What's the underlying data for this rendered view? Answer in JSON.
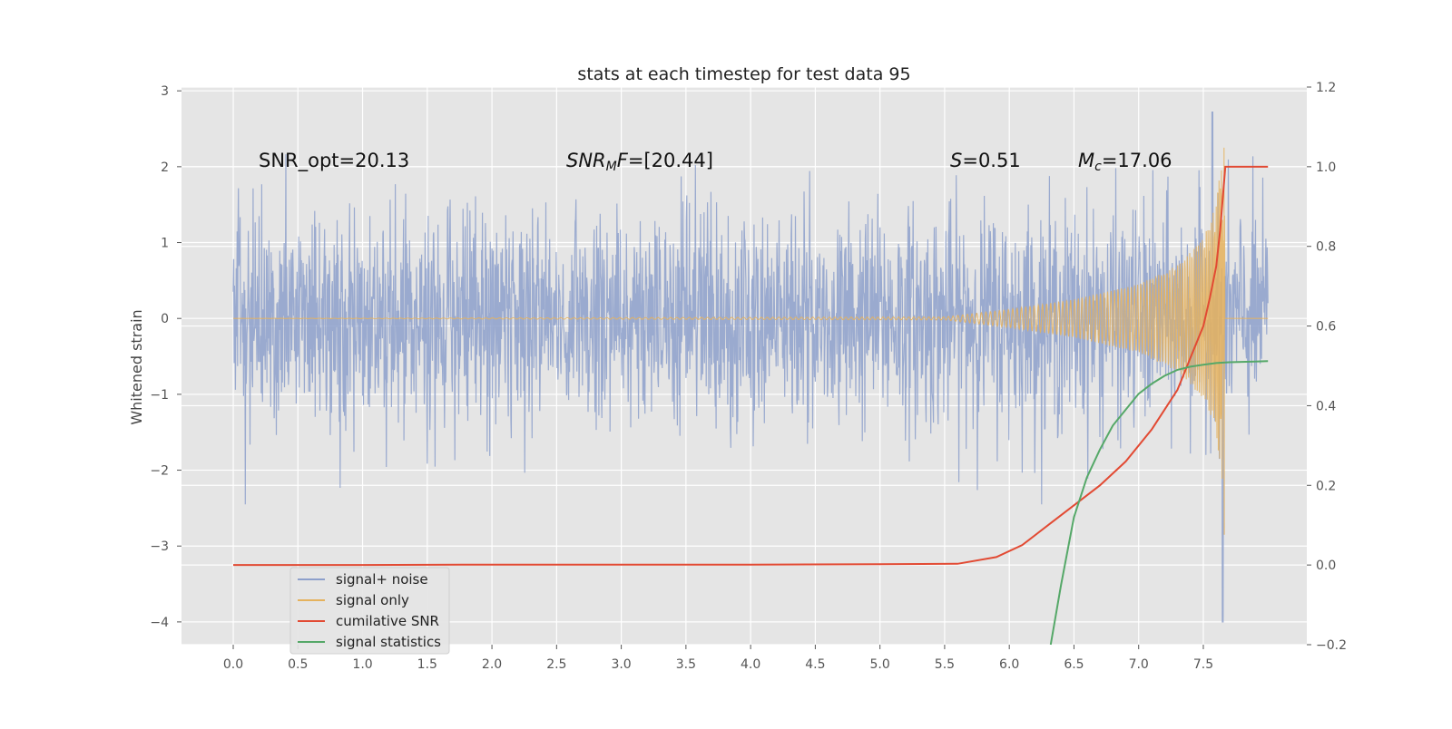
{
  "chart_data": {
    "type": "line",
    "title": "stats at each timestep for test data 95",
    "ylabel": "Whitened strain",
    "xlabel": "",
    "xlim": [
      -0.4,
      8.3
    ],
    "ylim": [
      -4.3,
      3.05
    ],
    "y2lim": [
      -0.2,
      1.2
    ],
    "x_ticks": [
      0.0,
      0.5,
      1.0,
      1.5,
      2.0,
      2.5,
      3.0,
      3.5,
      4.0,
      4.5,
      5.0,
      5.5,
      6.0,
      6.5,
      7.0,
      7.5
    ],
    "x_tick_labels": [
      "0.0",
      "0.5",
      "1.0",
      "1.5",
      "2.0",
      "2.5",
      "3.0",
      "3.5",
      "4.0",
      "4.5",
      "5.0",
      "5.5",
      "6.0",
      "6.5",
      "7.0",
      "7.5"
    ],
    "y_ticks": [
      3,
      2,
      1,
      0,
      -1,
      -2,
      -3,
      -4
    ],
    "y_tick_labels": [
      "3",
      "2",
      "1",
      "0",
      "−1",
      "−2",
      "−3",
      "−4"
    ],
    "y2_ticks": [
      1.2,
      1.0,
      0.8,
      0.6,
      0.4,
      0.2,
      0.0,
      -0.2
    ],
    "y2_tick_labels": [
      "1.2",
      "1.0",
      "0.8",
      "0.6",
      "0.4",
      "0.2",
      "0.0",
      "−0.2"
    ],
    "grid": true,
    "legend_position": "lower-left",
    "annotations": {
      "snr_opt": "SNR_opt=20.13",
      "snr_mf_italic": "SNR",
      "snr_mf_sub": "M",
      "snr_mf_rest_italic": "F",
      "snr_mf_value": "=[20.44]",
      "s_italic": "S",
      "s_value": "=0.51",
      "mc_italic": "M",
      "mc_sub": "c",
      "mc_value": "=17.06"
    },
    "series": [
      {
        "name": "signal+ noise",
        "color": "#8da0cb",
        "axis": "left",
        "x_range": [
          0.0,
          8.0
        ],
        "amplitude_envelope": [
          1.5,
          1.7
        ],
        "extremes": {
          "max": 2.72,
          "min": -4.0,
          "max_at": 7.57,
          "min_at": 7.65
        }
      },
      {
        "name": "signal only",
        "color": "#e5b25d",
        "axis": "left",
        "x": [
          0.0,
          5.5,
          6.0,
          6.5,
          7.0,
          7.3,
          7.5,
          7.6,
          7.65,
          7.66,
          7.67,
          8.0
        ],
        "envelope": [
          0.0,
          0.02,
          0.12,
          0.25,
          0.45,
          0.7,
          1.05,
          1.5,
          2.25,
          -2.85,
          0.0,
          0.0
        ]
      },
      {
        "name": "cumilative SNR",
        "color": "#e24a33",
        "axis": "right",
        "x": [
          0.0,
          1.0,
          2.0,
          3.0,
          4.0,
          5.0,
          5.6,
          5.9,
          6.1,
          6.3,
          6.5,
          6.7,
          6.9,
          7.1,
          7.3,
          7.4,
          7.5,
          7.55,
          7.6,
          7.63,
          7.67,
          7.7,
          8.0
        ],
        "y": [
          0.0,
          0.0,
          0.001,
          0.001,
          0.001,
          0.002,
          0.003,
          0.02,
          0.05,
          0.1,
          0.15,
          0.2,
          0.26,
          0.34,
          0.44,
          0.52,
          0.6,
          0.67,
          0.75,
          0.84,
          1.0,
          1.0,
          1.0
        ]
      },
      {
        "name": "signal statistics",
        "color": "#55a868",
        "axis": "right",
        "x": [
          6.32,
          6.4,
          6.5,
          6.6,
          6.7,
          6.8,
          6.9,
          7.0,
          7.1,
          7.2,
          7.3,
          7.4,
          7.5,
          7.6,
          7.7,
          7.8,
          7.9,
          8.0
        ],
        "y": [
          -0.2,
          -0.05,
          0.12,
          0.22,
          0.29,
          0.35,
          0.39,
          0.43,
          0.455,
          0.475,
          0.49,
          0.498,
          0.503,
          0.507,
          0.509,
          0.51,
          0.511,
          0.512
        ]
      }
    ]
  }
}
